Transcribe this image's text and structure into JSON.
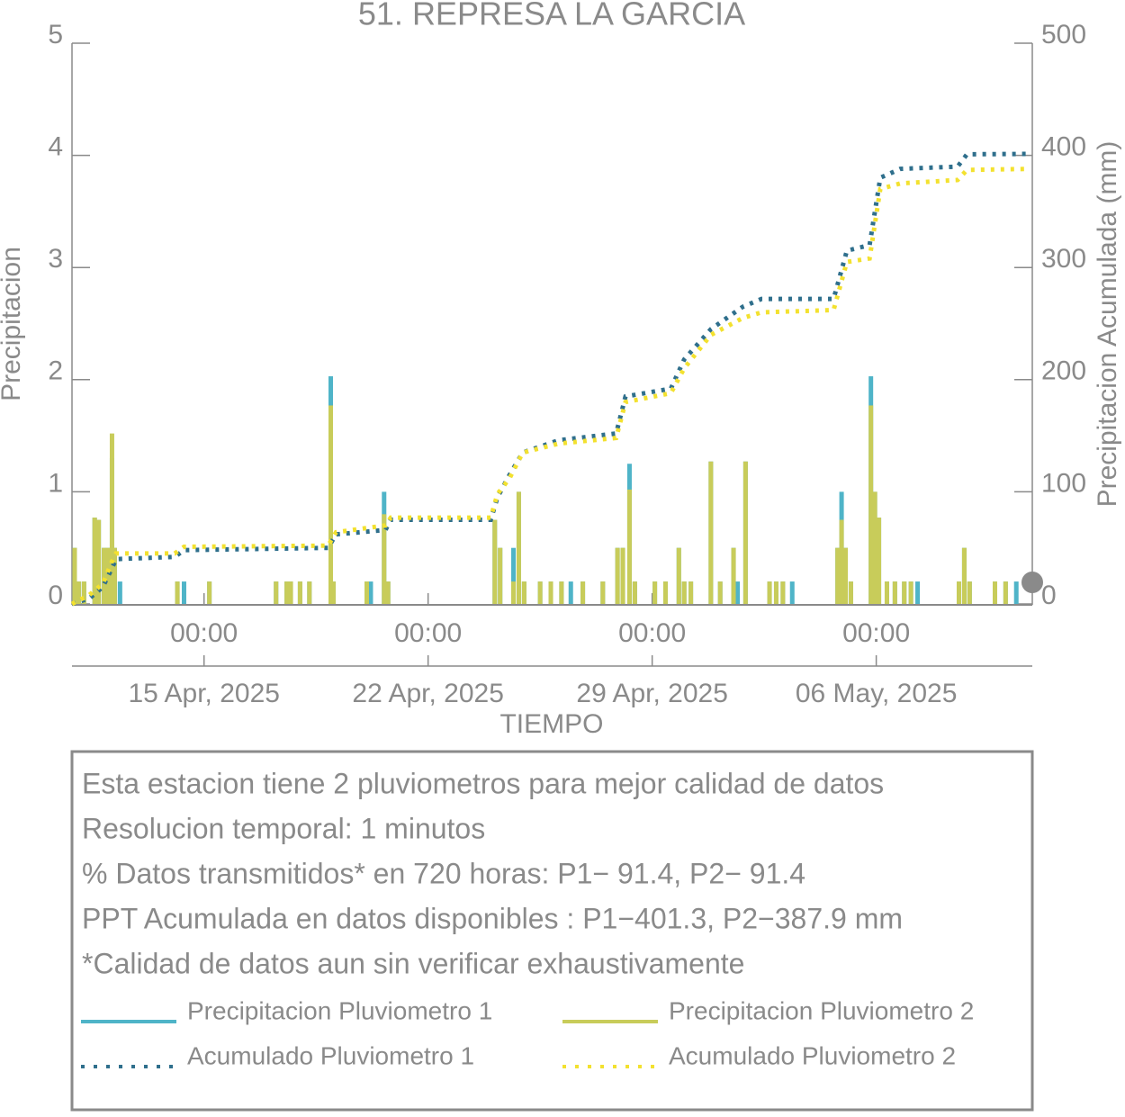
{
  "chart_data": {
    "type": "bar_cumulative",
    "title": "51. REPRESA LA GARCIA",
    "x_label": "TIEMPO",
    "y_label": "Precipitacion",
    "y2_label": "Precipitacion Acumulada (mm)",
    "xlim": [
      "2025-04-10 21:00",
      "2025-05-10 21:00"
    ],
    "xticks": [
      {
        "value": "2025-04-15 00:00",
        "label": "00:00"
      },
      {
        "value": "2025-04-22 00:00",
        "label": "00:00"
      },
      {
        "value": "2025-04-29 00:00",
        "label": "00:00"
      },
      {
        "value": "2025-05-06 00:00",
        "label": "00:00"
      }
    ],
    "xticks_dates": [
      {
        "value": "2025-04-15 00:00",
        "label": "15 Apr, 2025"
      },
      {
        "value": "2025-04-22 00:00",
        "label": "22 Apr, 2025"
      },
      {
        "value": "2025-04-29 00:00",
        "label": "29 Apr, 2025"
      },
      {
        "value": "2025-05-06 00:00",
        "label": "06 May, 2025"
      }
    ],
    "ylim": [
      0,
      5
    ],
    "yticks": [
      0,
      1,
      2,
      3,
      4,
      5
    ],
    "y2lim": [
      0,
      500
    ],
    "y2ticks": [
      0,
      100,
      200,
      300,
      400,
      500
    ],
    "x": [
      "2025-04-10 23:00",
      "2025-04-11 02:00",
      "2025-04-11 06:00",
      "2025-04-11 14:00",
      "2025-04-11 17:00",
      "2025-04-11 21:00",
      "2025-04-12 00:00",
      "2025-04-12 03:00",
      "2025-04-12 05:00",
      "2025-04-12 09:00",
      "2025-04-14 04:00",
      "2025-04-14 09:00",
      "2025-04-15 04:00",
      "2025-04-17 06:00",
      "2025-04-17 14:00",
      "2025-04-17 17:00",
      "2025-04-18 00:00",
      "2025-04-18 07:00",
      "2025-04-18 23:00",
      "2025-04-19 01:00",
      "2025-04-20 02:00",
      "2025-04-20 05:00",
      "2025-04-20 15:00",
      "2025-04-20 18:00",
      "2025-04-24 02:00",
      "2025-04-24 06:00",
      "2025-04-24 16:00",
      "2025-04-24 20:00",
      "2025-04-25 00:00",
      "2025-04-25 12:00",
      "2025-04-25 20:00",
      "2025-04-26 04:00",
      "2025-04-26 11:00",
      "2025-04-26 20:00",
      "2025-04-27 11:00",
      "2025-04-27 22:00",
      "2025-04-28 02:00",
      "2025-04-28 07:00",
      "2025-04-28 11:00",
      "2025-04-29 02:00",
      "2025-04-29 10:00",
      "2025-04-29 20:00",
      "2025-04-30 00:00",
      "2025-04-30 05:00",
      "2025-04-30 20:00",
      "2025-05-01 03:00",
      "2025-05-01 13:00",
      "2025-05-01 16:00",
      "2025-05-01 22:00",
      "2025-05-02 16:00",
      "2025-05-02 21:00",
      "2025-05-03 02:00",
      "2025-05-03 09:00",
      "2025-05-04 19:00",
      "2025-05-04 22:00",
      "2025-05-05 01:00",
      "2025-05-05 05:00",
      "2025-05-05 20:00",
      "2025-05-05 23:00",
      "2025-05-06 02:00",
      "2025-05-06 08:00",
      "2025-05-06 14:00",
      "2025-05-06 21:00",
      "2025-05-07 02:00",
      "2025-05-07 07:00",
      "2025-05-08 14:00",
      "2025-05-08 18:00",
      "2025-05-08 22:00",
      "2025-05-09 17:00",
      "2025-05-10 01:00",
      "2025-05-10 09:00"
    ],
    "series": [
      {
        "name": "Precipitacion Pluviometro 1",
        "color": "#4fb4c8",
        "values": [
          0.5,
          0.2,
          0.2,
          0.77,
          0.75,
          0.5,
          0.5,
          1.3,
          0.5,
          0.2,
          0.2,
          0.2,
          0.2,
          0.2,
          0.2,
          0.2,
          0.2,
          0.2,
          2.03,
          0.2,
          0.2,
          0.2,
          1.0,
          0.2,
          0.75,
          0.5,
          0.5,
          1.0,
          0.2,
          0.2,
          0.2,
          0.2,
          0.2,
          0.2,
          0.2,
          0.5,
          0.5,
          1.25,
          0.2,
          0.2,
          0.2,
          0.5,
          0.2,
          0.2,
          1.27,
          0.2,
          0.5,
          0.2,
          1.27,
          0.2,
          0.2,
          0.2,
          0.2,
          0.5,
          1.0,
          0.5,
          0.2,
          2.03,
          1.0,
          0.77,
          0.2,
          0.2,
          0.2,
          0.2,
          0.2,
          0.2,
          0.5,
          0.2,
          0.2,
          0.2,
          0.2
        ]
      },
      {
        "name": "Precipitacion Pluviometro 2",
        "color": "#c8cc5a",
        "values": [
          0.5,
          0.2,
          0.2,
          0.77,
          0.75,
          0.5,
          0.5,
          1.52,
          0.5,
          0,
          0.2,
          0,
          0.2,
          0.2,
          0.2,
          0.2,
          0.2,
          0.2,
          1.77,
          0.2,
          0.2,
          0,
          0.8,
          0.2,
          0.75,
          0.5,
          0.2,
          1.0,
          0.2,
          0.2,
          0.2,
          0.2,
          0,
          0.2,
          0.2,
          0.5,
          0.5,
          1.02,
          0.2,
          0.2,
          0.2,
          0.5,
          0.2,
          0.2,
          1.27,
          0.2,
          0.5,
          0,
          1.27,
          0.2,
          0.2,
          0.2,
          0,
          0.5,
          0.75,
          0.5,
          0.2,
          1.77,
          1.0,
          0.77,
          0.2,
          0.2,
          0.2,
          0.2,
          0,
          0.2,
          0.5,
          0.2,
          0.2,
          0.2,
          0
        ]
      }
    ],
    "x_cum": [
      "2025-04-10 21:00",
      "2025-04-11 10:00",
      "2025-04-11 20:00",
      "2025-04-12 03:00",
      "2025-04-12 06:00",
      "2025-04-14 02:00",
      "2025-04-14 09:00",
      "2025-04-18 21:00",
      "2025-04-19 03:00",
      "2025-04-20 16:00",
      "2025-04-20 20:00",
      "2025-04-23 23:00",
      "2025-04-24 04:00",
      "2025-04-24 13:00",
      "2025-04-24 23:00",
      "2025-04-26 02:00",
      "2025-04-27 21:00",
      "2025-04-28 04:00",
      "2025-04-29 14:00",
      "2025-04-30 00:00",
      "2025-04-30 20:00",
      "2025-05-01 20:00",
      "2025-05-02 10:00",
      "2025-05-04 16:00",
      "2025-05-05 02:00",
      "2025-05-05 19:00",
      "2025-05-06 03:00",
      "2025-05-06 18:00",
      "2025-05-08 13:00",
      "2025-05-08 20:00",
      "2025-05-10 17:00"
    ],
    "cumulative": [
      {
        "name": "Acumulado Pluviometro 1",
        "color": "#2f6f8c",
        "axis": "y2",
        "values": [
          0,
          5,
          15,
          32,
          40,
          42,
          48,
          50,
          62,
          66,
          75,
          75,
          95,
          115,
          135,
          146,
          152,
          185,
          192,
          218,
          245,
          265,
          272,
          272,
          315,
          320,
          380,
          388,
          390,
          401,
          401.3
        ]
      },
      {
        "name": "Acumulado Pluviometro 2",
        "color": "#f3e12f",
        "axis": "y2",
        "values": [
          0,
          8,
          18,
          38,
          45,
          45,
          51,
          52,
          64,
          70,
          77,
          77,
          98,
          112,
          135,
          143,
          148,
          180,
          188,
          210,
          240,
          255,
          260,
          262,
          305,
          308,
          370,
          375,
          378,
          387,
          387.9
        ]
      }
    ],
    "notes": [
      "Esta estacion tiene 2 pluviometros para mejor calidad de datos",
      "Resolucion temporal: 1 minutos",
      "% Datos transmitidos* en 720 horas: P1− 91.4, P2− 91.4",
      "PPT Acumulada en datos disponibles : P1−401.3, P2−387.9 mm",
      "*Calidad de datos aun sin verificar exhaustivamente"
    ]
  }
}
